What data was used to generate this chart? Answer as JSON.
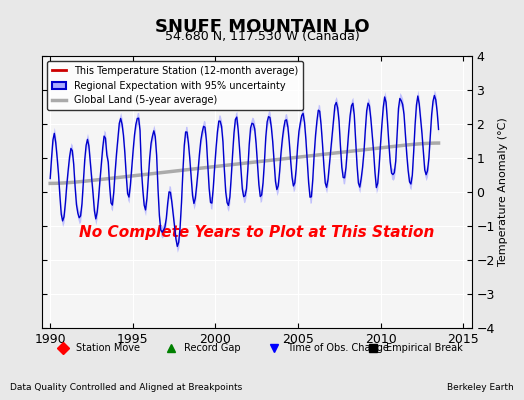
{
  "title": "SNUFF MOUNTAIN LO",
  "subtitle": "54.680 N, 117.530 W (Canada)",
  "ylabel": "Temperature Anomaly (°C)",
  "xlim": [
    1989.5,
    2015.5
  ],
  "ylim": [
    -4,
    4
  ],
  "yticks": [
    -4,
    -3,
    -2,
    -1,
    0,
    1,
    2,
    3,
    4
  ],
  "xticks": [
    1990,
    1995,
    2000,
    2005,
    2010,
    2015
  ],
  "bg_color": "#e8e8e8",
  "plot_bg_color": "#f5f5f5",
  "red_line_color": "#cc0000",
  "blue_line_color": "#0000cc",
  "blue_fill_color": "#aaaaff",
  "gray_line_color": "#aaaaaa",
  "annotation_text": "No Complete Years to Plot at This Station",
  "annotation_color": "red",
  "footer_left": "Data Quality Controlled and Aligned at Breakpoints",
  "footer_right": "Berkeley Earth",
  "legend_labels": [
    "This Temperature Station (12-month average)",
    "Regional Expectation with 95% uncertainty",
    "Global Land (5-year average)"
  ],
  "bottom_legend": [
    "Station Move",
    "Record Gap",
    "Time of Obs. Change",
    "Empirical Break"
  ],
  "bottom_legend_colors": [
    "red",
    "green",
    "blue",
    "black"
  ],
  "bottom_legend_markers": [
    "D",
    "^",
    "v",
    "s"
  ]
}
